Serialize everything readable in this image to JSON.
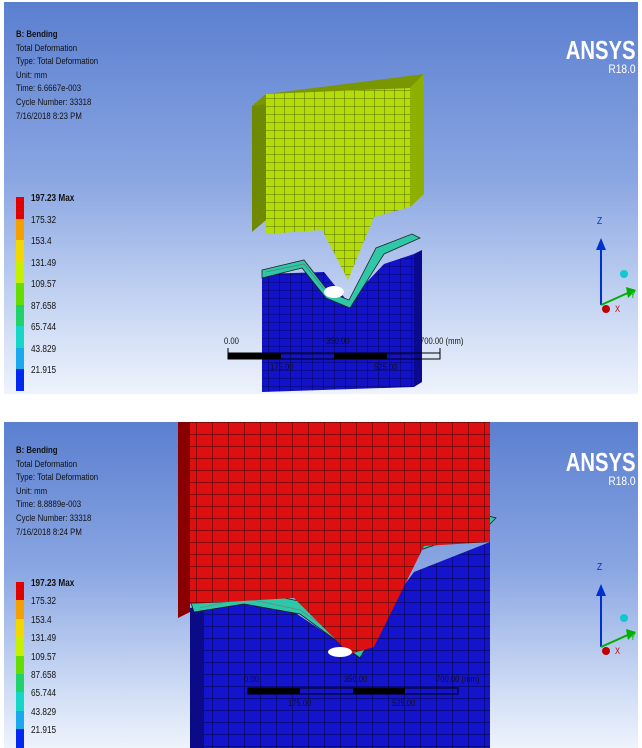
{
  "panels": [
    {
      "info": {
        "title": "B: Bending",
        "result": "Total Deformation",
        "type": "Type: Total Deformation",
        "unit": "Unit: mm",
        "time": "Time: 6.6667e-003",
        "cycle": "Cycle Number: 33318",
        "date": "7/16/2018 8:23 PM"
      },
      "legend": [
        "197.23 Max",
        "175.32",
        "153.4",
        "131.49",
        "109.57",
        "87.658",
        "65.744",
        "43.829",
        "21.915"
      ],
      "scale": {
        "left": "0.00",
        "mid": "350.00",
        "right": "700.00 (mm)",
        "under": "175.00",
        "under2": "525.00"
      },
      "triad": {
        "z": "Z",
        "y": "Y",
        "x": "X"
      },
      "logo": "ANSYS",
      "version": "R18.0"
    },
    {
      "info": {
        "title": "B: Bending",
        "result": "Total Deformation",
        "type": "Type: Total Deformation",
        "unit": "Unit: mm",
        "time": "Time: 8.8889e-003",
        "cycle": "Cycle Number: 33318",
        "date": "7/16/2018 8:24 PM"
      },
      "legend": [
        "197.23 Max",
        "175.32",
        "153.4",
        "131.49",
        "109.57",
        "87.658",
        "65.744",
        "43.829",
        "21.915"
      ],
      "scale": {
        "left": "0.00",
        "mid": "350.00",
        "right": "700.00 (mm)",
        "under": "175.00",
        "under2": "525.00"
      },
      "triad": {
        "z": "Z",
        "y": "Y",
        "x": "X"
      },
      "logo": "ANSYS",
      "version": "R18.0"
    }
  ],
  "legend_colors": [
    "#e00000",
    "#f5a000",
    "#f3d800",
    "#c7f000",
    "#66dd00",
    "#1fd26a",
    "#16d6c8",
    "#1aa8ee",
    "#0028f0"
  ]
}
